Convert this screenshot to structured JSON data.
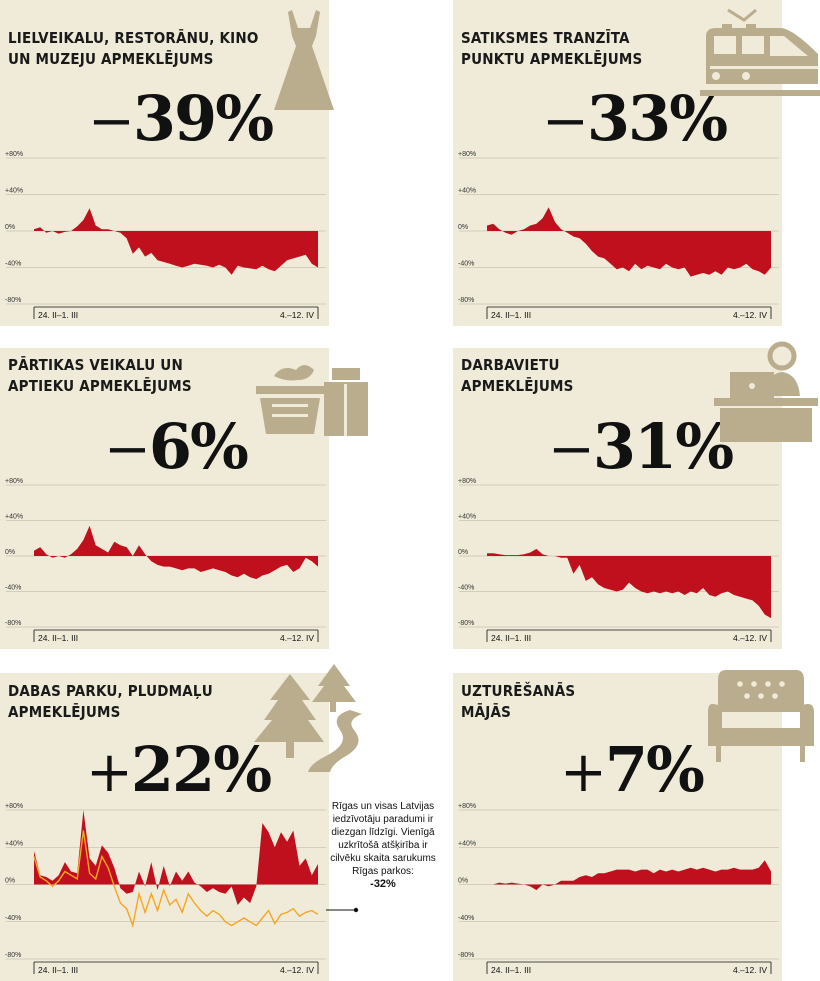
{
  "accent_color": "#c0101e",
  "secondary_line_color": "#f5a623",
  "panel_background": "#efebd8",
  "icon_color": "#b9ad8e",
  "panels": [
    {
      "title_lines": [
        "LIELVEIKALU, RESTORĀNU, KINO",
        "UN MUZEJU APMEKLĒJUMS"
      ],
      "sign": "−",
      "value": "39%",
      "icon": "dress-icon"
    },
    {
      "title_lines": [
        "SATIKSMES TRANZĪTA",
        "PUNKTU APMEKLĒJUMS"
      ],
      "sign": "−",
      "value": "33%",
      "icon": "train-icon"
    },
    {
      "title_lines": [
        "PĀRTIKAS VEIKALU UN",
        "APTIEKU APMEKLĒJUMS"
      ],
      "sign": "−",
      "value": "6%",
      "icon": "grocery-basket-icon"
    },
    {
      "title_lines": [
        "DARBAVIETU",
        "APMEKLĒJUMS"
      ],
      "sign": "−",
      "value": "31%",
      "icon": "office-desk-icon"
    },
    {
      "title_lines": [
        "DABAS PARKU, PLUDMAĻU",
        "APMEKLĒJUMS"
      ],
      "sign": "+",
      "value": "22%",
      "icon": "trees-path-icon"
    },
    {
      "title_lines": [
        "UZTURĒŠANĀS",
        "MĀJĀS"
      ],
      "sign": "+",
      "value": "7%",
      "icon": "armchair-icon"
    }
  ],
  "annotation": {
    "text": "Rīgas un visas Latvijas iedzīvotāju paradumi ir diezgan līdzīgi. Vienīgā uzkrītošā atšķirība ir cilvēku skaita sarukums Rīgas parkos:",
    "value": "-32%"
  },
  "chart_data": [
    {
      "type": "area",
      "yticks": [
        "+80%",
        "+40%",
        "0%",
        "-40%",
        "-80%"
      ],
      "ylim": [
        -80,
        80
      ],
      "x_start_label": "24. II–1. III",
      "x_end_label": "4.–12. IV",
      "values": [
        2,
        4,
        -2,
        0,
        -3,
        -1,
        0,
        5,
        12,
        25,
        6,
        2,
        2,
        0,
        -2,
        -8,
        -25,
        -18,
        -28,
        -24,
        -32,
        -34,
        -36,
        -38,
        -40,
        -38,
        -36,
        -37,
        -38,
        -40,
        -37,
        -40,
        -48,
        -38,
        -40,
        -41,
        -42,
        -38,
        -42,
        -44,
        -38,
        -32,
        -30,
        -28,
        -26,
        -36,
        -40
      ]
    },
    {
      "type": "area",
      "yticks": [
        "+80%",
        "+40%",
        "0%",
        "-40%",
        "-80%"
      ],
      "ylim": [
        -80,
        80
      ],
      "x_start_label": "24. II–1. III",
      "x_end_label": "4.–12. IV",
      "values": [
        6,
        8,
        2,
        -2,
        -4,
        0,
        2,
        6,
        8,
        14,
        26,
        10,
        2,
        -2,
        -6,
        -8,
        -14,
        -22,
        -28,
        -30,
        -36,
        -42,
        -40,
        -44,
        -36,
        -42,
        -38,
        -40,
        -42,
        -36,
        -40,
        -42,
        -40,
        -50,
        -48,
        -46,
        -48,
        -44,
        -48,
        -40,
        -42,
        -40,
        -36,
        -42,
        -44,
        -48,
        -40
      ]
    },
    {
      "type": "area",
      "yticks": [
        "+80%",
        "+40%",
        "0%",
        "-40%",
        "-80%"
      ],
      "ylim": [
        -80,
        80
      ],
      "x_start_label": "24. II–1. III",
      "x_end_label": "4.–12. IV",
      "values": [
        6,
        10,
        2,
        -2,
        0,
        -2,
        2,
        8,
        18,
        34,
        12,
        8,
        4,
        16,
        12,
        10,
        0,
        12,
        2,
        -6,
        -10,
        -12,
        -12,
        -14,
        -16,
        -14,
        -14,
        -18,
        -16,
        -14,
        -16,
        -18,
        -22,
        -24,
        -20,
        -24,
        -26,
        -22,
        -20,
        -16,
        -12,
        -10,
        -18,
        -14,
        -2,
        -6,
        -12
      ]
    },
    {
      "type": "area",
      "yticks": [
        "+80%",
        "+40%",
        "0%",
        "-40%",
        "-80%"
      ],
      "ylim": [
        -80,
        80
      ],
      "x_start_label": "24. II–1. III",
      "x_end_label": "4.–12. IV",
      "values": [
        3,
        3,
        2,
        1,
        1,
        1,
        2,
        4,
        8,
        2,
        0,
        0,
        -2,
        -2,
        -20,
        -10,
        -28,
        -24,
        -32,
        -36,
        -38,
        -40,
        -38,
        -30,
        -36,
        -40,
        -42,
        -40,
        -42,
        -40,
        -42,
        -40,
        -44,
        -40,
        -42,
        -36,
        -44,
        -46,
        -42,
        -40,
        -44,
        -46,
        -48,
        -50,
        -56,
        -66,
        -70
      ]
    },
    {
      "type": "area",
      "yticks": [
        "+80%",
        "+40%",
        "0%",
        "-40%",
        "-80%"
      ],
      "ylim": [
        -80,
        80
      ],
      "x_start_label": "24. II–1. III",
      "x_end_label": "4.–12. IV",
      "values": [
        36,
        10,
        8,
        4,
        10,
        24,
        14,
        12,
        80,
        28,
        20,
        42,
        34,
        18,
        -4,
        -10,
        -8,
        14,
        -2,
        24,
        -6,
        20,
        -2,
        14,
        4,
        14,
        2,
        -2,
        -8,
        -4,
        -8,
        -10,
        -2,
        -22,
        -14,
        -20,
        -2,
        66,
        56,
        40,
        56,
        46,
        58,
        20,
        28,
        10,
        22
      ],
      "secondary_series_values": [
        30,
        8,
        4,
        -2,
        4,
        14,
        10,
        6,
        58,
        12,
        6,
        30,
        18,
        -2,
        -20,
        -26,
        -44,
        -10,
        -30,
        -10,
        -28,
        -6,
        -22,
        -16,
        -30,
        -10,
        -20,
        -28,
        -34,
        -28,
        -32,
        -40,
        -44,
        -40,
        -36,
        -40,
        -44,
        -36,
        -28,
        -42,
        -32,
        -30,
        -26,
        -34,
        -30,
        -28,
        -32
      ]
    },
    {
      "type": "area",
      "yticks": [
        "+80%",
        "+40%",
        "0%",
        "-40%",
        "-80%"
      ],
      "ylim": [
        -80,
        80
      ],
      "x_start_label": "24. II–1. III",
      "x_end_label": "4.–12. IV",
      "values": [
        0,
        0,
        2,
        1,
        2,
        1,
        0,
        -2,
        -6,
        0,
        -2,
        0,
        4,
        4,
        4,
        8,
        10,
        8,
        12,
        12,
        14,
        16,
        16,
        16,
        14,
        16,
        16,
        12,
        16,
        14,
        16,
        14,
        16,
        18,
        16,
        18,
        16,
        14,
        16,
        16,
        18,
        16,
        16,
        16,
        18,
        26,
        14
      ]
    }
  ]
}
